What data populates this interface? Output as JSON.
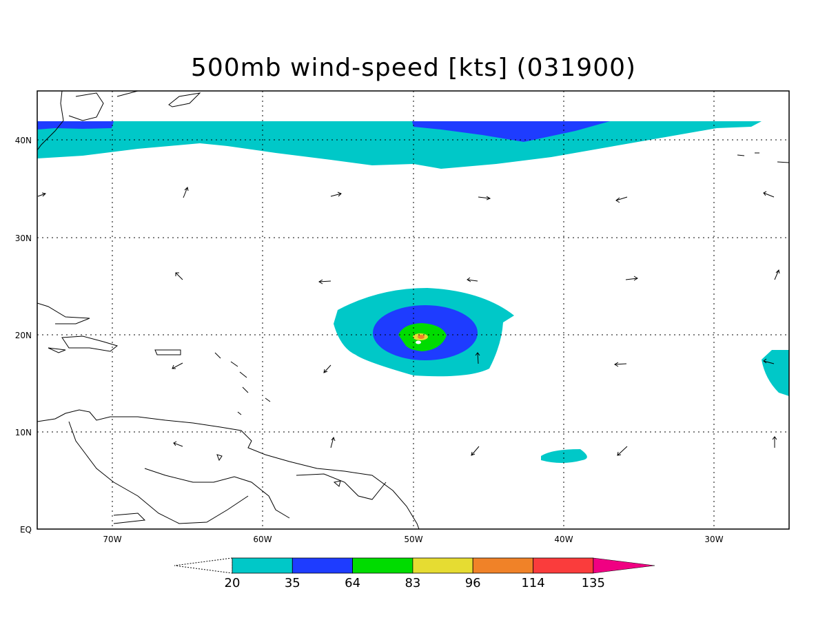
{
  "title": "500mb wind-speed [kts] (031900)",
  "axes": {
    "x_ticks": [
      "70W",
      "60W",
      "50W",
      "40W",
      "30W"
    ],
    "y_ticks": [
      "40N",
      "30N",
      "20N",
      "10N",
      "EQ"
    ]
  },
  "colorbar": {
    "labels": [
      "20",
      "35",
      "64",
      "83",
      "96",
      "114",
      "135"
    ],
    "colors": [
      "#00c8c8",
      "#1e3cff",
      "#00dc00",
      "#e6dc32",
      "#f08228",
      "#fa3c3c",
      "#f00082"
    ]
  },
  "chart_data": {
    "type": "heatmap",
    "title": "500mb wind-speed [kts] (031900)",
    "variable": "500mb wind speed",
    "units": "kts",
    "lon_range": [
      -75,
      -25
    ],
    "lat_range": [
      0,
      45
    ],
    "levels": [
      20,
      35,
      64,
      83,
      96,
      114,
      135
    ],
    "features": [
      {
        "name": "storm",
        "center_lon": -49.3,
        "center_lat": 19.4,
        "max_band": "96-114"
      },
      {
        "name": "northern jet",
        "lat": 40,
        "band": "20-35 with 35-64 core near 45W"
      }
    ],
    "grid": true
  }
}
